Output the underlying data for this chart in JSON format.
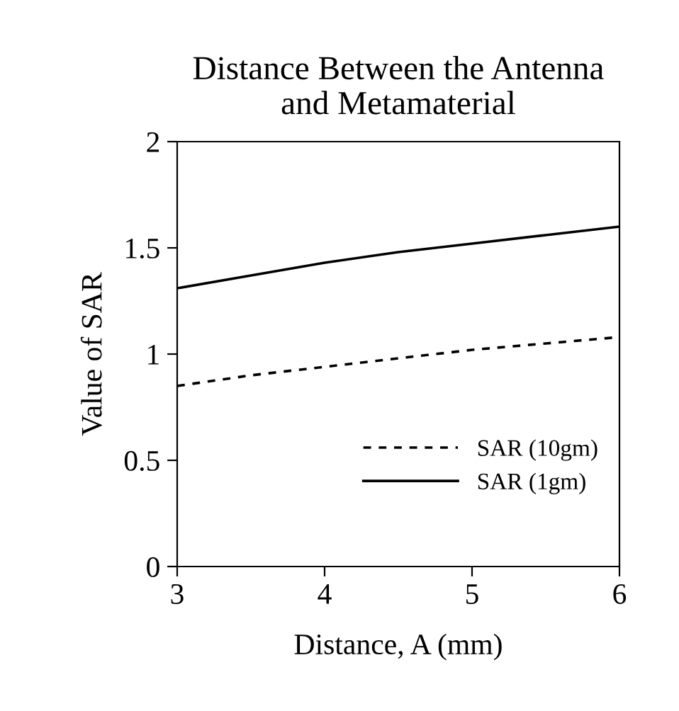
{
  "chart_data": {
    "type": "line",
    "title": "Distance Between the Antenna\nand Metamaterial",
    "xlabel": "Distance, A (mm)",
    "ylabel": "Value of SAR",
    "x": [
      3,
      3.5,
      4,
      4.5,
      5,
      5.5,
      6
    ],
    "series": [
      {
        "name": "SAR (10gm)",
        "color": "#000000",
        "line_style": "dashed",
        "values": [
          0.85,
          0.9,
          0.94,
          0.98,
          1.02,
          1.05,
          1.08
        ]
      },
      {
        "name": "SAR (1gm)",
        "color": "#000000",
        "line_style": "solid",
        "values": [
          1.31,
          1.37,
          1.43,
          1.48,
          1.52,
          1.56,
          1.6
        ]
      }
    ],
    "xlim": [
      3,
      6
    ],
    "xticks": [
      3,
      4,
      5,
      6
    ],
    "ylim": [
      0,
      2
    ],
    "yticks": [
      0,
      0.5,
      1,
      1.5,
      2
    ],
    "grid": false,
    "legend": "bottom right"
  }
}
